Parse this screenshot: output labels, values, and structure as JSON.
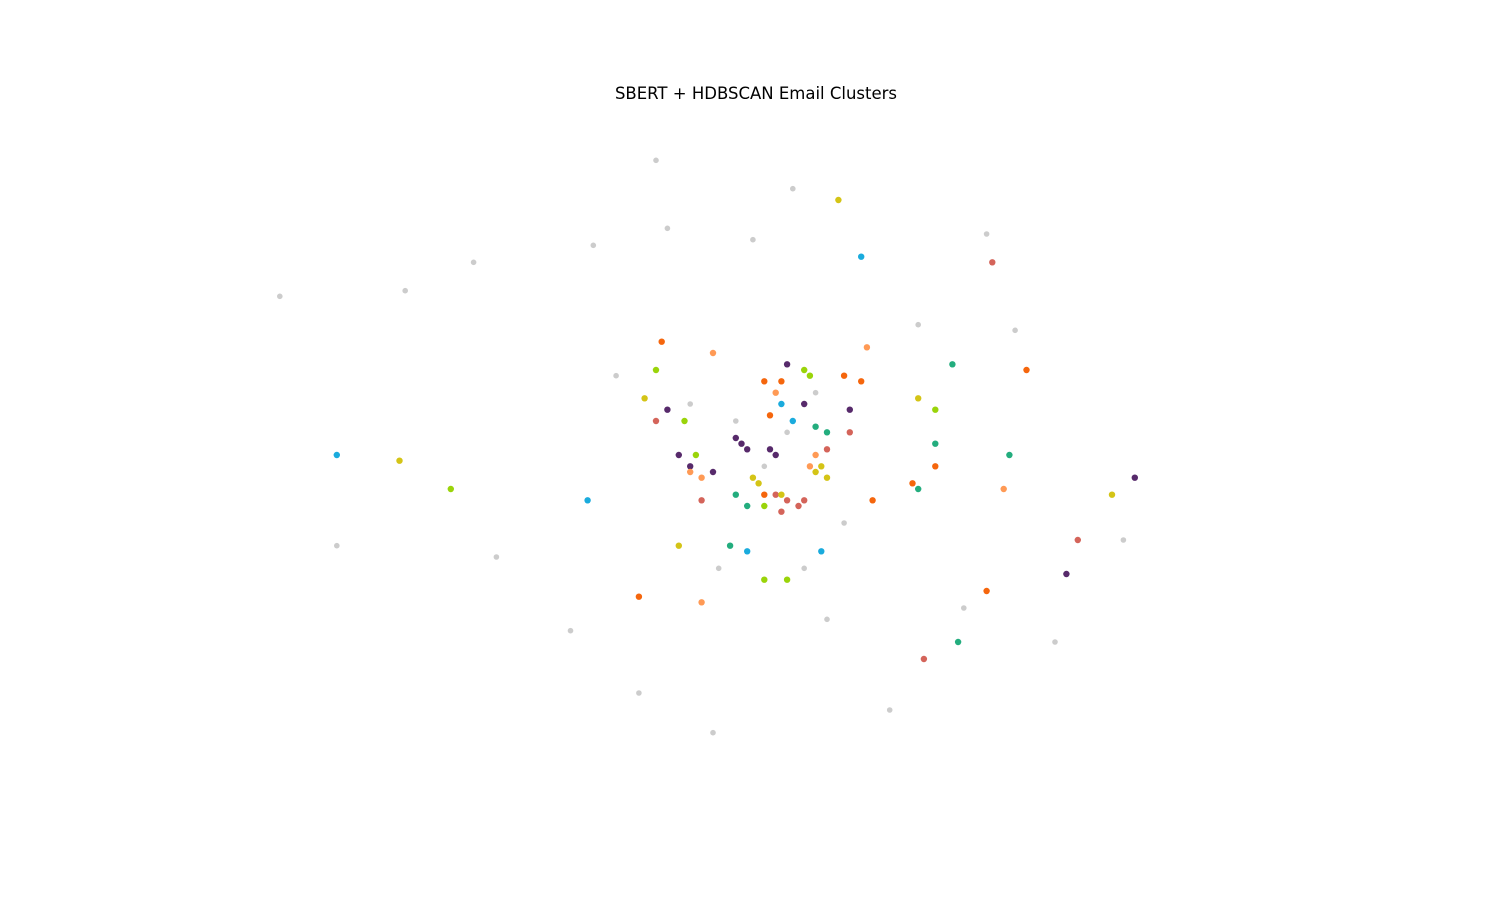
{
  "chart_data": {
    "type": "scatter",
    "title": "SBERT + HDBSCAN Email Clusters",
    "xlabel": "",
    "ylabel": "",
    "axes_visible": false,
    "grid": false,
    "legend": "none",
    "xlim": [
      -10,
      10
    ],
    "ylim": [
      -6,
      6
    ],
    "noise_color": "#cccccc",
    "series": [
      {
        "color": "#cccccc",
        "points": [
          [
            -2.0,
            5.2
          ],
          [
            -0.3,
            3.8
          ],
          [
            -5.2,
            3.4
          ],
          [
            -3.1,
            3.7
          ],
          [
            3.8,
            3.9
          ],
          [
            4.3,
            2.2
          ],
          [
            -6.4,
            2.9
          ],
          [
            -2.7,
            1.4
          ],
          [
            -1.8,
            4.0
          ],
          [
            2.6,
            2.3
          ],
          [
            0.8,
            1.1
          ],
          [
            -4.8,
            -1.8
          ],
          [
            -3.5,
            -3.1
          ],
          [
            -2.3,
            -4.2
          ],
          [
            1.0,
            -2.9
          ],
          [
            2.1,
            -4.5
          ],
          [
            3.4,
            -2.7
          ],
          [
            5.0,
            -3.3
          ],
          [
            6.2,
            -1.5
          ],
          [
            -7.6,
            -1.6
          ],
          [
            -8.6,
            2.8
          ],
          [
            -1.0,
            -4.9
          ],
          [
            0.4,
            4.7
          ],
          [
            -0.9,
            -2.0
          ],
          [
            0.6,
            -2.0
          ],
          [
            1.3,
            -1.2
          ],
          [
            -1.4,
            0.9
          ],
          [
            -0.6,
            0.6
          ],
          [
            -0.1,
            -0.2
          ],
          [
            0.3,
            0.4
          ]
        ]
      },
      {
        "color": "#d4645a",
        "points": [
          [
            0.3,
            -0.8
          ],
          [
            0.5,
            -0.9
          ],
          [
            0.1,
            -0.7
          ],
          [
            0.6,
            -0.8
          ],
          [
            0.2,
            -1.0
          ],
          [
            1.0,
            0.1
          ],
          [
            1.4,
            0.4
          ],
          [
            -1.2,
            -0.8
          ],
          [
            -2.0,
            0.6
          ],
          [
            2.7,
            -3.6
          ],
          [
            5.4,
            -1.5
          ],
          [
            3.9,
            3.4
          ]
        ]
      },
      {
        "color": "#572a6b",
        "points": [
          [
            -0.5,
            0.2
          ],
          [
            -0.4,
            0.1
          ],
          [
            -0.6,
            0.3
          ],
          [
            0.0,
            0.1
          ],
          [
            0.1,
            0.0
          ],
          [
            -1.6,
            0.0
          ],
          [
            -1.4,
            -0.2
          ],
          [
            -1.8,
            0.8
          ],
          [
            0.6,
            0.9
          ],
          [
            0.3,
            1.6
          ],
          [
            1.4,
            0.8
          ],
          [
            -1.0,
            -0.3
          ],
          [
            5.2,
            -2.1
          ],
          [
            6.4,
            -0.4
          ]
        ]
      },
      {
        "color": "#d4c416",
        "points": [
          [
            0.8,
            -0.3
          ],
          [
            0.9,
            -0.2
          ],
          [
            1.0,
            -0.4
          ],
          [
            -0.2,
            -0.5
          ],
          [
            -0.3,
            -0.4
          ],
          [
            0.2,
            -0.7
          ],
          [
            1.2,
            4.5
          ],
          [
            -2.2,
            1.0
          ],
          [
            2.6,
            1.0
          ],
          [
            -1.6,
            -1.6
          ],
          [
            6.0,
            -0.7
          ],
          [
            -6.5,
            -0.1
          ]
        ]
      },
      {
        "color": "#9ad40a",
        "points": [
          [
            0.6,
            1.5
          ],
          [
            0.7,
            1.4
          ],
          [
            -0.1,
            -0.9
          ],
          [
            -1.3,
            0.0
          ],
          [
            -0.1,
            -2.2
          ],
          [
            0.3,
            -2.2
          ],
          [
            -5.6,
            -0.6
          ],
          [
            -1.5,
            0.6
          ],
          [
            -2.0,
            1.5
          ],
          [
            2.9,
            0.8
          ]
        ]
      },
      {
        "color": "#f5660d",
        "points": [
          [
            -0.1,
            1.3
          ],
          [
            0.2,
            1.3
          ],
          [
            0.0,
            0.7
          ],
          [
            1.3,
            1.4
          ],
          [
            1.6,
            1.3
          ],
          [
            -0.1,
            -0.7
          ],
          [
            -1.9,
            2.0
          ],
          [
            -2.3,
            -2.5
          ],
          [
            3.8,
            -2.4
          ],
          [
            2.5,
            -0.5
          ],
          [
            4.5,
            1.5
          ],
          [
            2.9,
            -0.2
          ],
          [
            1.8,
            -0.8
          ]
        ]
      },
      {
        "color": "#1aabdd",
        "points": [
          [
            0.2,
            0.9
          ],
          [
            0.4,
            0.6
          ],
          [
            0.9,
            -1.7
          ],
          [
            -7.6,
            0.0
          ],
          [
            -3.2,
            -0.8
          ],
          [
            1.6,
            3.5
          ],
          [
            -0.4,
            -1.7
          ]
        ]
      },
      {
        "color": "#23ad7e",
        "points": [
          [
            0.8,
            0.5
          ],
          [
            1.0,
            0.4
          ],
          [
            -0.4,
            -0.9
          ],
          [
            -0.6,
            -0.7
          ],
          [
            -0.7,
            -1.6
          ],
          [
            3.2,
            1.6
          ],
          [
            2.6,
            -0.6
          ],
          [
            3.3,
            -3.3
          ],
          [
            4.2,
            0.0
          ],
          [
            2.9,
            0.2
          ]
        ]
      },
      {
        "color": "#ff9a55",
        "points": [
          [
            0.1,
            1.1
          ],
          [
            0.7,
            -0.2
          ],
          [
            0.8,
            0.0
          ],
          [
            -1.2,
            -0.4
          ],
          [
            -1.4,
            -0.3
          ],
          [
            -1.2,
            -2.6
          ],
          [
            4.1,
            -0.6
          ],
          [
            -1.0,
            1.8
          ],
          [
            1.7,
            1.9
          ]
        ]
      }
    ]
  }
}
